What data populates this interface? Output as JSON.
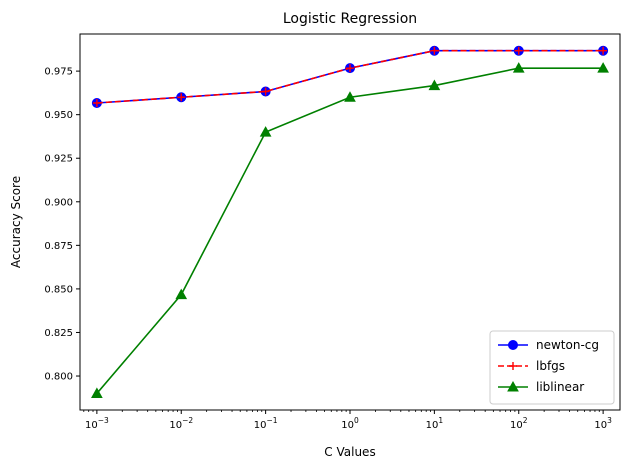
{
  "chart_data": {
    "type": "line",
    "title": "Logistic Regression",
    "xlabel": "C Values",
    "ylabel": "Accuracy Score",
    "x_scale": "log",
    "x": [
      0.001,
      0.01,
      0.1,
      1,
      10,
      100,
      1000
    ],
    "x_tick_labels": [
      {
        "base": "10",
        "exp": "−3"
      },
      {
        "base": "10",
        "exp": "−2"
      },
      {
        "base": "10",
        "exp": "−1"
      },
      {
        "base": "10",
        "exp": "0"
      },
      {
        "base": "10",
        "exp": "1"
      },
      {
        "base": "10",
        "exp": "2"
      },
      {
        "base": "10",
        "exp": "3"
      }
    ],
    "xlim": [
      0.000631,
      1585
    ],
    "y_ticks": [
      0.8,
      0.825,
      0.85,
      0.875,
      0.9,
      0.925,
      0.95,
      0.975
    ],
    "y_tick_labels": [
      "0.800",
      "0.825",
      "0.850",
      "0.875",
      "0.900",
      "0.925",
      "0.950",
      "0.975"
    ],
    "ylim": [
      0.7805,
      0.9963
    ],
    "grid": false,
    "legend_position": "lower-right",
    "series": [
      {
        "name": "newton-cg",
        "color": "#0000ff",
        "marker": "circle",
        "line_style": "solid",
        "values": [
          0.9567,
          0.96,
          0.9633,
          0.9767,
          0.9867,
          0.9867,
          0.9867
        ]
      },
      {
        "name": "lbfgs",
        "color": "#ff0000",
        "marker": "plus",
        "line_style": "dashed",
        "values": [
          0.9567,
          0.96,
          0.9633,
          0.9767,
          0.9867,
          0.9867,
          0.9867
        ]
      },
      {
        "name": "liblinear",
        "color": "#008000",
        "marker": "triangle-up",
        "line_style": "solid",
        "values": [
          0.79,
          0.8467,
          0.94,
          0.96,
          0.9667,
          0.9767,
          0.9767
        ]
      }
    ]
  }
}
